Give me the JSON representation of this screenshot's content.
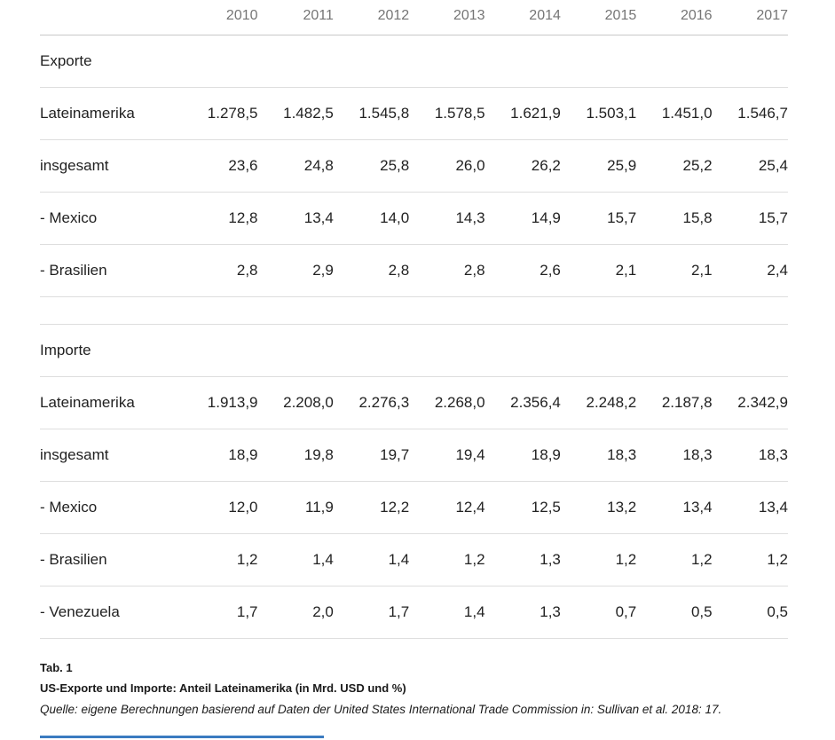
{
  "accent_line_color": "#3b7bc0",
  "table": {
    "years": [
      "2010",
      "2011",
      "2012",
      "2013",
      "2014",
      "2015",
      "2016",
      "2017"
    ],
    "sections": [
      {
        "title": "Exporte",
        "rows": [
          {
            "label": "Lateinamerika",
            "values": [
              "1.278,5",
              "1.482,5",
              "1.545,8",
              "1.578,5",
              "1.621,9",
              "1.503,1",
              "1.451,0",
              "1.546,7"
            ]
          },
          {
            "label": "insgesamt",
            "values": [
              "23,6",
              "24,8",
              "25,8",
              "26,0",
              "26,2",
              "25,9",
              "25,2",
              "25,4"
            ]
          },
          {
            "label": "- Mexico",
            "values": [
              "12,8",
              "13,4",
              "14,0",
              "14,3",
              "14,9",
              "15,7",
              "15,8",
              "15,7"
            ]
          },
          {
            "label": "- Brasilien",
            "values": [
              "2,8",
              "2,9",
              "2,8",
              "2,8",
              "2,6",
              "2,1",
              "2,1",
              "2,4"
            ]
          }
        ]
      },
      {
        "title": "Importe",
        "rows": [
          {
            "label": "Lateinamerika",
            "values": [
              "1.913,9",
              "2.208,0",
              "2.276,3",
              "2.268,0",
              "2.356,4",
              "2.248,2",
              "2.187,8",
              "2.342,9"
            ]
          },
          {
            "label": "insgesamt",
            "values": [
              "18,9",
              "19,8",
              "19,7",
              "19,4",
              "18,9",
              "18,3",
              "18,3",
              "18,3"
            ]
          },
          {
            "label": "- Mexico",
            "values": [
              "12,0",
              "11,9",
              "12,2",
              "12,4",
              "12,5",
              "13,2",
              "13,4",
              "13,4"
            ]
          },
          {
            "label": "- Brasilien",
            "values": [
              "1,2",
              "1,4",
              "1,4",
              "1,2",
              "1,3",
              "1,2",
              "1,2",
              "1,2"
            ]
          },
          {
            "label": "- Venezuela",
            "values": [
              "1,7",
              "2,0",
              "1,7",
              "1,4",
              "1,3",
              "0,7",
              "0,5",
              "0,5"
            ]
          }
        ]
      }
    ]
  },
  "caption": {
    "tab_label": "Tab. 1",
    "title": "US-Exporte und Importe: Anteil Lateinamerika (in Mrd. USD und %)",
    "source": "Quelle: eigene Berechnungen basierend auf Daten der United States International Trade Commission in: Sullivan et al. 2018: 17."
  }
}
